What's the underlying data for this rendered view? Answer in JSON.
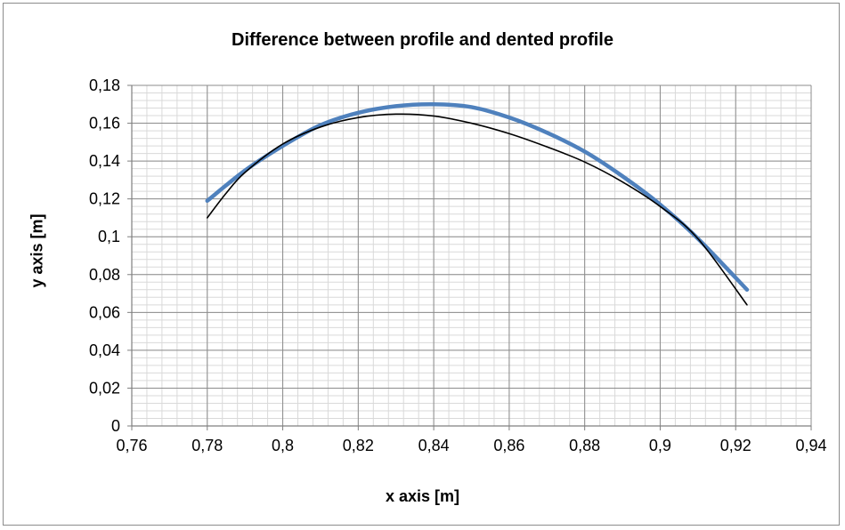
{
  "chart_data": {
    "type": "line",
    "title": "Difference between profile and dented profile",
    "xlabel": "x axis [m]",
    "ylabel": "y axis [m]",
    "xlim": [
      0.76,
      0.94
    ],
    "ylim": [
      0,
      0.18
    ],
    "x_ticks": [
      "0,76",
      "0,78",
      "0,8",
      "0,82",
      "0,84",
      "0,86",
      "0,88",
      "0,9",
      "0,92",
      "0,94"
    ],
    "y_ticks": [
      "0",
      "0,02",
      "0,04",
      "0,06",
      "0,08",
      "0,1",
      "0,12",
      "0,14",
      "0,16",
      "0,18"
    ],
    "grid": true,
    "legend": "none",
    "series": [
      {
        "color": "#4f81bd",
        "x": [
          0.78,
          0.79,
          0.8,
          0.81,
          0.82,
          0.83,
          0.84,
          0.85,
          0.86,
          0.87,
          0.88,
          0.89,
          0.9,
          0.91,
          0.923
        ],
        "y": [
          0.119,
          0.135,
          0.148,
          0.159,
          0.1655,
          0.169,
          0.17,
          0.1685,
          0.163,
          0.155,
          0.145,
          0.132,
          0.117,
          0.099,
          0.072
        ]
      },
      {
        "color": "#000000",
        "x": [
          0.78,
          0.785,
          0.79,
          0.8,
          0.81,
          0.82,
          0.83,
          0.84,
          0.85,
          0.86,
          0.87,
          0.88,
          0.89,
          0.9,
          0.91,
          0.923
        ],
        "y": [
          0.11,
          0.123,
          0.134,
          0.149,
          0.158,
          0.163,
          0.1648,
          0.1638,
          0.16,
          0.1545,
          0.1475,
          0.1395,
          0.129,
          0.116,
          0.099,
          0.064
        ]
      }
    ]
  }
}
